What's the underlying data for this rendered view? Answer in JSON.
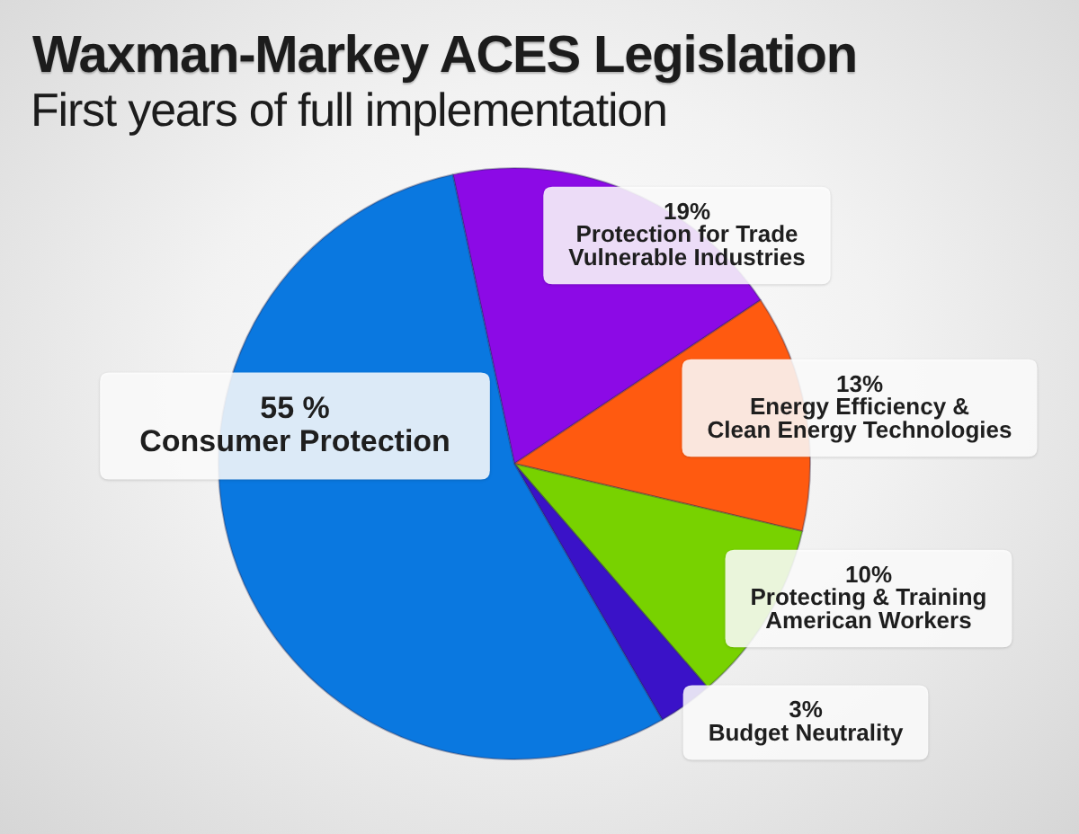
{
  "chart_data": {
    "type": "pie",
    "title": "Waxman-Markey ACES Legislation",
    "subtitle": "First years of full implementation",
    "categories": [
      "Protection for Trade Vulnerable Industries",
      "Energy Efficiency & Clean Energy Technologies",
      "Protecting & Training American Workers",
      "Budget Neutrality",
      "Consumer Protection"
    ],
    "values": [
      19,
      13,
      10,
      3,
      55
    ],
    "colors": [
      "#8c0ae6",
      "#ff5a10",
      "#78d200",
      "#3a12c8",
      "#0a78e0"
    ],
    "value_labels": [
      "19%",
      "13%",
      "10%",
      "3%",
      "55 %"
    ],
    "legend": false
  }
}
